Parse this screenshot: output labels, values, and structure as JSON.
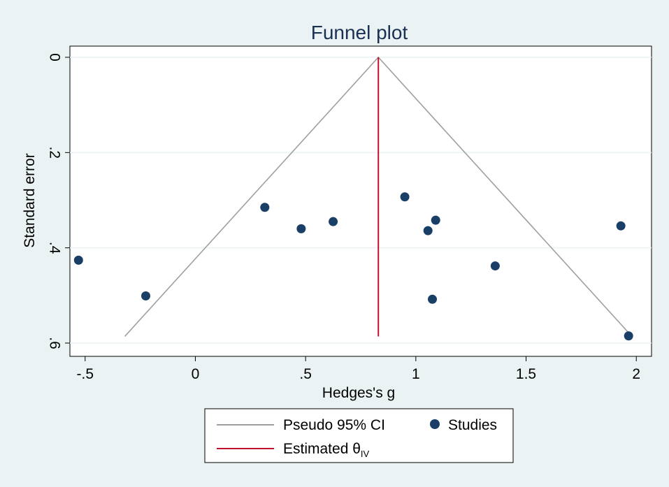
{
  "chart_data": {
    "type": "scatter",
    "title": "Funnel plot",
    "xlabel": "Hedges's g",
    "ylabel": "Standard error",
    "xlim": [
      -0.55,
      2.05
    ],
    "ylim": [
      0,
      0.6
    ],
    "y_reversed": true,
    "x_ticks": [
      -0.5,
      0,
      0.5,
      1,
      1.5,
      2
    ],
    "x_tick_labels": [
      "-.5",
      "0",
      ".5",
      "1",
      "1.5",
      "2"
    ],
    "y_ticks": [
      0,
      0.2,
      0.4,
      0.6
    ],
    "y_tick_labels": [
      "0",
      ".2",
      ".4",
      ".6"
    ],
    "grid": true,
    "estimate": 0.83,
    "ci_lines": {
      "name": "Pseudo 95% CI",
      "color": "#a0a0a0",
      "left": [
        [
          0.83,
          0
        ],
        [
          -0.32,
          0.586
        ]
      ],
      "right": [
        [
          0.83,
          0
        ],
        [
          1.98,
          0.586
        ]
      ]
    },
    "estimate_line": {
      "name": "Estimated θ",
      "subscript": "IV",
      "color": "#c0122c",
      "x": 0.83,
      "y_range": [
        0,
        0.586
      ]
    },
    "series": [
      {
        "name": "Studies",
        "color": "#1a3f66",
        "points": [
          {
            "x": -0.53,
            "y": 0.426
          },
          {
            "x": -0.225,
            "y": 0.501
          },
          {
            "x": 0.315,
            "y": 0.315
          },
          {
            "x": 0.48,
            "y": 0.36
          },
          {
            "x": 0.625,
            "y": 0.345
          },
          {
            "x": 0.95,
            "y": 0.293
          },
          {
            "x": 1.055,
            "y": 0.364
          },
          {
            "x": 1.09,
            "y": 0.342
          },
          {
            "x": 1.075,
            "y": 0.508
          },
          {
            "x": 1.36,
            "y": 0.438
          },
          {
            "x": 1.93,
            "y": 0.354
          },
          {
            "x": 1.965,
            "y": 0.585
          }
        ]
      }
    ],
    "legend": {
      "placement": "bottom",
      "entries": [
        {
          "label": "Pseudo 95% CI",
          "kind": "line",
          "color": "#a0a0a0"
        },
        {
          "label": "Studies",
          "kind": "marker",
          "color": "#1a3f66"
        },
        {
          "label": "Estimated θ",
          "subscript": "IV",
          "kind": "line",
          "color": "#c0122c"
        }
      ]
    }
  }
}
